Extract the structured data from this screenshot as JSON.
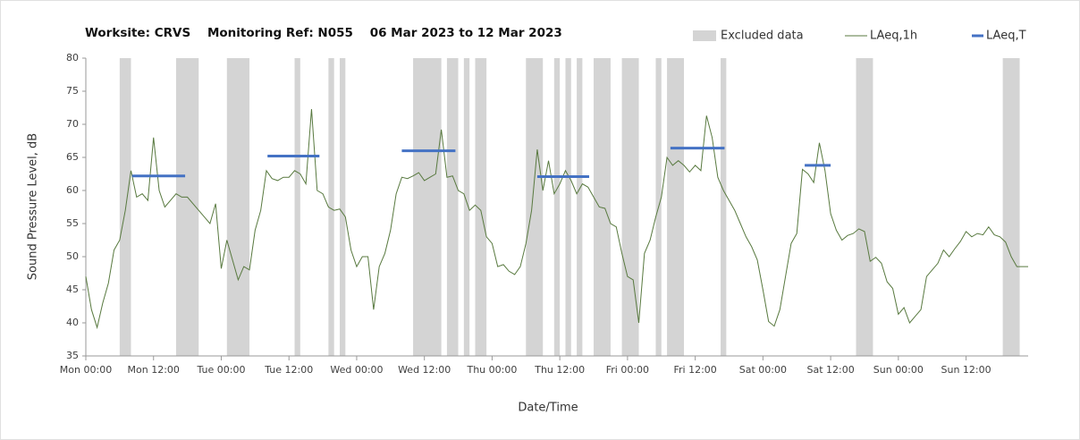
{
  "chart_data": {
    "type": "line",
    "title": "Worksite: CRVS    Monitoring Ref: N055    06 Mar 2023 to 12 Mar 2023",
    "xlabel": "Date/Time",
    "ylabel": "Sound Pressure Level, dB",
    "xlim": [
      0,
      167
    ],
    "xticks": [
      {
        "value": 0,
        "label": "Mon 00:00"
      },
      {
        "value": 12,
        "label": "Mon 12:00"
      },
      {
        "value": 24,
        "label": "Tue 00:00"
      },
      {
        "value": 36,
        "label": "Tue 12:00"
      },
      {
        "value": 48,
        "label": "Wed 00:00"
      },
      {
        "value": 60,
        "label": "Wed 12:00"
      },
      {
        "value": 72,
        "label": "Thu 00:00"
      },
      {
        "value": 84,
        "label": "Thu 12:00"
      },
      {
        "value": 96,
        "label": "Fri 00:00"
      },
      {
        "value": 108,
        "label": "Fri 12:00"
      },
      {
        "value": 120,
        "label": "Sat 00:00"
      },
      {
        "value": 132,
        "label": "Sat 12:00"
      },
      {
        "value": 144,
        "label": "Sun 00:00"
      },
      {
        "value": 156,
        "label": "Sun 12:00"
      }
    ],
    "ylim": [
      35,
      80
    ],
    "yticks": [
      35,
      40,
      45,
      50,
      55,
      60,
      65,
      70,
      75,
      80
    ],
    "legend": "top-right",
    "x": [
      0,
      1,
      2,
      3,
      4,
      5,
      6,
      7,
      8,
      9,
      10,
      11,
      12,
      13,
      14,
      15,
      16,
      17,
      18,
      19,
      20,
      21,
      22,
      23,
      24,
      25,
      26,
      27,
      28,
      29,
      30,
      31,
      32,
      33,
      34,
      35,
      36,
      37,
      38,
      39,
      40,
      41,
      42,
      43,
      44,
      45,
      46,
      47,
      48,
      49,
      50,
      51,
      52,
      53,
      54,
      55,
      56,
      57,
      58,
      59,
      60,
      61,
      62,
      63,
      64,
      65,
      66,
      67,
      68,
      69,
      70,
      71,
      72,
      73,
      74,
      75,
      76,
      77,
      78,
      79,
      80,
      81,
      82,
      83,
      84,
      85,
      86,
      87,
      88,
      89,
      90,
      91,
      92,
      93,
      94,
      95,
      96,
      97,
      98,
      99,
      100,
      101,
      102,
      103,
      104,
      105,
      106,
      107,
      108,
      109,
      110,
      111,
      112,
      113,
      114,
      115,
      116,
      117,
      118,
      119,
      120,
      121,
      122,
      123,
      124,
      125,
      126,
      127,
      128,
      129,
      130,
      131,
      132,
      133,
      134,
      135,
      136,
      137,
      138,
      139,
      140,
      141,
      142,
      143,
      144,
      145,
      146,
      147,
      148,
      149,
      150,
      151,
      152,
      153,
      154,
      155,
      156,
      157,
      158,
      159,
      160,
      161,
      162,
      163,
      164,
      165,
      166,
      167
    ],
    "excluded": {
      "name": "Excluded data",
      "color": "#d4d4d4",
      "ranges": [
        [
          6,
          8
        ],
        [
          16,
          20
        ],
        [
          25,
          29
        ],
        [
          37,
          38
        ],
        [
          43,
          44
        ],
        [
          45,
          46
        ],
        [
          58,
          63
        ],
        [
          64,
          66
        ],
        [
          67,
          68
        ],
        [
          69,
          71
        ],
        [
          78,
          81
        ],
        [
          83,
          84
        ],
        [
          85,
          86
        ],
        [
          87,
          88
        ],
        [
          90,
          93
        ],
        [
          95,
          98
        ],
        [
          101,
          102
        ],
        [
          103,
          106
        ],
        [
          112.5,
          113.5
        ],
        [
          136.5,
          139.5
        ],
        [
          162.5,
          165.5
        ]
      ]
    },
    "series": [
      {
        "name": "LAeq,1h",
        "color": "#58793f",
        "values": [
          47,
          42,
          39.3,
          43,
          46,
          51,
          52.5,
          57,
          63,
          59,
          59.5,
          58.5,
          68,
          60,
          57.5,
          58.5,
          59.5,
          59,
          59,
          58,
          57,
          56,
          55,
          58,
          48.2,
          52.5,
          49.5,
          46.5,
          48.5,
          48,
          54,
          57,
          63,
          61.8,
          61.5,
          62,
          62,
          63,
          62.5,
          61,
          72.3,
          60,
          59.5,
          57.5,
          57,
          57.2,
          56,
          51,
          48.5,
          50,
          50,
          42,
          48.5,
          50.5,
          54,
          59.5,
          62,
          61.8,
          62.2,
          62.7,
          61.5,
          62,
          62.5,
          69.2,
          62,
          62.2,
          60,
          59.5,
          57,
          57.8,
          57,
          53,
          52,
          48.5,
          48.8,
          47.8,
          47.3,
          48.5,
          52,
          57,
          66.2,
          60,
          64.5,
          59.5,
          61,
          63,
          61.5,
          59.5,
          61,
          60.5,
          59,
          57.5,
          57.3,
          55,
          54.5,
          50.5,
          47,
          46.5,
          40,
          50.5,
          52.5,
          56,
          59,
          65,
          63.8,
          64.5,
          63.8,
          62.8,
          63.8,
          63,
          71.3,
          68,
          62,
          60,
          58.5,
          57,
          55,
          53,
          51.5,
          49.5,
          45,
          40.2,
          39.5,
          42,
          47,
          52,
          53.5,
          63.2,
          62.5,
          61.2,
          67.2,
          63,
          56.5,
          54,
          52.5,
          53.2,
          53.5,
          54.2,
          53.8,
          49.3,
          49.9,
          49,
          46.2,
          45.2,
          41.3,
          42.3,
          40,
          41,
          42,
          47,
          48,
          49,
          51,
          50,
          51.2,
          52.3,
          53.8,
          53,
          53.5,
          53.3,
          54.5,
          53.3,
          53,
          52.2,
          50,
          48.5,
          48.5,
          48.5
        ]
      },
      {
        "name": "LAeq,T",
        "color": "#4472c4",
        "periods": [
          {
            "start": 8.2,
            "end": 17.6,
            "value": 62.2
          },
          {
            "start": 32.2,
            "end": 41.4,
            "value": 65.2
          },
          {
            "start": 56,
            "end": 65.5,
            "value": 66
          },
          {
            "start": 80,
            "end": 89.2,
            "value": 62.1
          },
          {
            "start": 103.6,
            "end": 113.2,
            "value": 66.4
          },
          {
            "start": 127.4,
            "end": 132,
            "value": 63.8
          }
        ]
      }
    ]
  }
}
